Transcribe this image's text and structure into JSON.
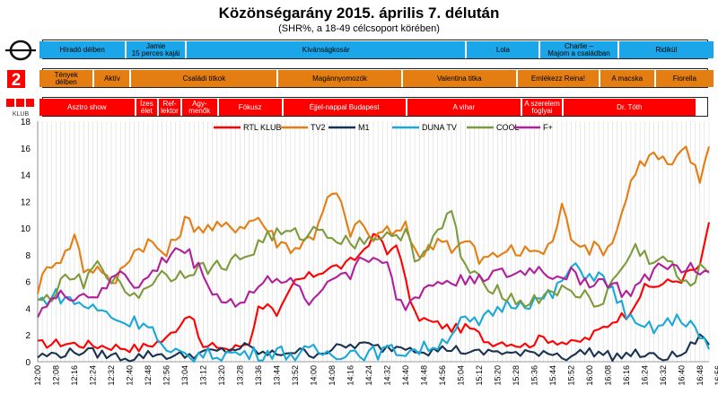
{
  "title": "Közönségarány 2015. április 7. délután",
  "subtitle": "(SHR%, a 18-49 célcsoport körében)",
  "channels": {
    "m1": {
      "logo": "m1-logo",
      "color": "#1aa6e8",
      "programs": [
        {
          "label": "Híradó délben",
          "start": 0,
          "end": 18
        },
        {
          "label": "Jamie\n15 perces kajái",
          "start": 19,
          "end": 31
        },
        {
          "label": "Kívánságkosár",
          "start": 32,
          "end": 92
        },
        {
          "label": "Lola",
          "start": 93,
          "end": 108
        },
        {
          "label": "Charlie –\nMajom a családban",
          "start": 109,
          "end": 125
        },
        {
          "label": "Ridikül",
          "start": 126,
          "end": 146
        }
      ]
    },
    "tv2": {
      "logo": "tv2-logo",
      "color": "#e47d12",
      "programs": [
        {
          "label": "Tények\ndélben",
          "start": 0,
          "end": 11
        },
        {
          "label": "Aktív",
          "start": 12,
          "end": 19
        },
        {
          "label": "Családi titkok",
          "start": 20,
          "end": 51
        },
        {
          "label": "Magánnyomozók",
          "start": 52,
          "end": 78
        },
        {
          "label": "Valentina titka",
          "start": 79,
          "end": 103
        },
        {
          "label": "Emlékezz Reina!",
          "start": 104,
          "end": 121
        },
        {
          "label": "A macska",
          "start": 122,
          "end": 133
        },
        {
          "label": "Fiorella",
          "start": 134,
          "end": 146
        }
      ]
    },
    "rtl": {
      "logo": "rtl-klub-logo",
      "logo_text": "KLUB",
      "color": "#ff0000",
      "programs": [
        {
          "label": "Asztro show",
          "start": 0,
          "end": 20
        },
        {
          "label": "Ízes\nélet",
          "start": 21,
          "end": 25
        },
        {
          "label": "Ref-\nlektor",
          "start": 26,
          "end": 30
        },
        {
          "label": "Agy-\nmenők",
          "start": 31,
          "end": 38
        },
        {
          "label": "Fókusz",
          "start": 39,
          "end": 52
        },
        {
          "label": "Éjjel-nappal Budapest",
          "start": 53,
          "end": 79
        },
        {
          "label": "A vihar",
          "start": 80,
          "end": 104
        },
        {
          "label": "A szerelem\nfoglyai",
          "start": 105,
          "end": 113
        },
        {
          "label": "Dr. Tóth",
          "start": 114,
          "end": 142
        }
      ]
    }
  },
  "chart_data": {
    "type": "line",
    "ylim": [
      0,
      18
    ],
    "yticks": [
      "0",
      "2",
      "4",
      "6",
      "8",
      "10",
      "12",
      "14",
      "16",
      "18"
    ],
    "x_labels": [
      "12:00",
      "12:08",
      "12:16",
      "12:24",
      "12:32",
      "12:40",
      "12:48",
      "12:56",
      "13:04",
      "13:12",
      "13:20",
      "13:28",
      "13:36",
      "13:44",
      "13:52",
      "14:00",
      "14:08",
      "14:16",
      "14:24",
      "14:32",
      "14:40",
      "14:48",
      "14:56",
      "15:04",
      "15:12",
      "15:20",
      "15:28",
      "15:36",
      "15:44",
      "15:52",
      "16:00",
      "16:08",
      "16:16",
      "16:24",
      "16:32",
      "16:40",
      "16:48",
      "16:56",
      "17:04",
      "17:12",
      "17:20",
      "17:28",
      "17:36",
      "17:44",
      "17:52"
    ],
    "legend_position": "top",
    "grid": "vertical",
    "series": [
      {
        "name": "RTL KLUB",
        "color": "#ff0000",
        "anchors": [
          [
            0,
            1.3
          ],
          [
            5,
            1.4
          ],
          [
            10,
            1.3
          ],
          [
            18,
            1.1
          ],
          [
            22,
            1.0
          ],
          [
            28,
            1.7
          ],
          [
            33,
            3.7
          ],
          [
            36,
            1.0
          ],
          [
            39,
            1.2
          ],
          [
            42,
            0.9
          ],
          [
            46,
            1.5
          ],
          [
            48,
            4.0
          ],
          [
            50,
            4.5
          ],
          [
            52,
            3.2
          ],
          [
            56,
            6.0
          ],
          [
            60,
            6.5
          ],
          [
            63,
            7.0
          ],
          [
            67,
            7.2
          ],
          [
            70,
            8.0
          ],
          [
            72,
            9.0
          ],
          [
            74,
            9.5
          ],
          [
            76,
            8.0
          ],
          [
            78,
            9.0
          ],
          [
            80,
            6.0
          ],
          [
            82,
            3.5
          ],
          [
            85,
            3.0
          ],
          [
            90,
            2.5
          ],
          [
            94,
            2.5
          ],
          [
            98,
            1.5
          ],
          [
            102,
            1.5
          ],
          [
            106,
            1.2
          ],
          [
            110,
            1.8
          ],
          [
            114,
            1.5
          ],
          [
            116,
            1.3
          ],
          [
            120,
            1.8
          ],
          [
            124,
            2.8
          ],
          [
            126,
            3.3
          ],
          [
            128,
            3.5
          ],
          [
            132,
            5.5
          ],
          [
            138,
            6.0
          ],
          [
            140,
            6.2
          ],
          [
            142,
            6.8
          ],
          [
            144,
            7.0
          ],
          [
            146,
            10.5
          ]
        ]
      },
      {
        "name": "TV2",
        "color": "#e47d12",
        "anchors": [
          [
            0,
            5.5
          ],
          [
            3,
            7.5
          ],
          [
            6,
            8.0
          ],
          [
            8,
            9.5
          ],
          [
            10,
            7.0
          ],
          [
            14,
            7.0
          ],
          [
            16,
            5.5
          ],
          [
            20,
            8.0
          ],
          [
            24,
            9.0
          ],
          [
            28,
            8.0
          ],
          [
            32,
            10.5
          ],
          [
            36,
            10.0
          ],
          [
            40,
            10.0
          ],
          [
            44,
            10.2
          ],
          [
            48,
            10.8
          ],
          [
            52,
            9.0
          ],
          [
            56,
            8.5
          ],
          [
            60,
            9.5
          ],
          [
            62,
            11.5
          ],
          [
            64,
            12.5
          ],
          [
            66,
            12.0
          ],
          [
            68,
            9.0
          ],
          [
            70,
            11.0
          ],
          [
            72,
            9.0
          ],
          [
            76,
            10.0
          ],
          [
            78,
            9.5
          ],
          [
            80,
            10.0
          ],
          [
            82,
            8.5
          ],
          [
            84,
            8.0
          ],
          [
            88,
            9.5
          ],
          [
            90,
            8.5
          ],
          [
            94,
            9.0
          ],
          [
            96,
            7.5
          ],
          [
            100,
            8.0
          ],
          [
            102,
            8.5
          ],
          [
            104,
            8.0
          ],
          [
            108,
            8.5
          ],
          [
            110,
            8.0
          ],
          [
            112,
            9.2
          ],
          [
            114,
            11.5
          ],
          [
            116,
            9.5
          ],
          [
            120,
            8.5
          ],
          [
            124,
            8.5
          ],
          [
            126,
            10.0
          ],
          [
            130,
            14.5
          ],
          [
            134,
            15.5
          ],
          [
            138,
            14.5
          ],
          [
            141,
            16.0
          ],
          [
            144,
            13.5
          ],
          [
            146,
            16.5
          ]
        ]
      },
      {
        "name": "M1",
        "color": "#1a3350",
        "anchors": [
          [
            0,
            0.4
          ],
          [
            5,
            0.6
          ],
          [
            10,
            0.8
          ],
          [
            15,
            0.5
          ],
          [
            20,
            0.3
          ],
          [
            25,
            0.6
          ],
          [
            30,
            0.4
          ],
          [
            35,
            0.6
          ],
          [
            40,
            0.8
          ],
          [
            45,
            1.1
          ],
          [
            50,
            0.5
          ],
          [
            55,
            0.8
          ],
          [
            60,
            0.6
          ],
          [
            65,
            1.0
          ],
          [
            70,
            1.3
          ],
          [
            75,
            1.0
          ],
          [
            80,
            1.2
          ],
          [
            85,
            0.8
          ],
          [
            90,
            1.0
          ],
          [
            95,
            0.6
          ],
          [
            100,
            0.8
          ],
          [
            105,
            0.5
          ],
          [
            110,
            0.8
          ],
          [
            115,
            0.4
          ],
          [
            120,
            0.8
          ],
          [
            125,
            0.4
          ],
          [
            130,
            0.6
          ],
          [
            135,
            0.3
          ],
          [
            140,
            0.5
          ],
          [
            143,
            1.5
          ],
          [
            145,
            2.0
          ],
          [
            146,
            1.0
          ]
        ]
      },
      {
        "name": "DUNA TV",
        "color": "#19a8d8",
        "anchors": [
          [
            0,
            4.5
          ],
          [
            4,
            5.0
          ],
          [
            8,
            4.5
          ],
          [
            12,
            4.0
          ],
          [
            16,
            3.5
          ],
          [
            18,
            3.0
          ],
          [
            20,
            3.0
          ],
          [
            24,
            3.0
          ],
          [
            28,
            0.5
          ],
          [
            32,
            0.5
          ],
          [
            36,
            0.5
          ],
          [
            40,
            0.6
          ],
          [
            44,
            0.6
          ],
          [
            48,
            0.6
          ],
          [
            52,
            0.8
          ],
          [
            56,
            0.5
          ],
          [
            60,
            0.8
          ],
          [
            64,
            0.6
          ],
          [
            68,
            0.8
          ],
          [
            72,
            0.6
          ],
          [
            76,
            0.8
          ],
          [
            80,
            0.8
          ],
          [
            84,
            1.0
          ],
          [
            88,
            1.5
          ],
          [
            92,
            3.0
          ],
          [
            96,
            2.8
          ],
          [
            100,
            4.0
          ],
          [
            104,
            4.5
          ],
          [
            108,
            4.5
          ],
          [
            112,
            5.0
          ],
          [
            116,
            7.0
          ],
          [
            120,
            6.5
          ],
          [
            122,
            6.5
          ],
          [
            126,
            4.8
          ],
          [
            130,
            2.5
          ],
          [
            134,
            2.5
          ],
          [
            138,
            3.0
          ],
          [
            140,
            3.2
          ],
          [
            142,
            3.0
          ],
          [
            144,
            1.8
          ],
          [
            146,
            0.8
          ]
        ]
      },
      {
        "name": "COOL",
        "color": "#7d9b3c",
        "anchors": [
          [
            0,
            4.3
          ],
          [
            3,
            5.0
          ],
          [
            6,
            6.0
          ],
          [
            8,
            6.5
          ],
          [
            10,
            5.5
          ],
          [
            12,
            7.0
          ],
          [
            14,
            7.2
          ],
          [
            18,
            5.5
          ],
          [
            22,
            5.0
          ],
          [
            26,
            6.5
          ],
          [
            30,
            6.5
          ],
          [
            34,
            7.0
          ],
          [
            38,
            7.0
          ],
          [
            42,
            7.5
          ],
          [
            46,
            8.0
          ],
          [
            50,
            9.5
          ],
          [
            54,
            9.5
          ],
          [
            58,
            9.5
          ],
          [
            62,
            10.0
          ],
          [
            66,
            9.0
          ],
          [
            70,
            9.0
          ],
          [
            74,
            9.5
          ],
          [
            78,
            9.0
          ],
          [
            80,
            10.2
          ],
          [
            82,
            8.0
          ],
          [
            84,
            8.0
          ],
          [
            88,
            10.0
          ],
          [
            90,
            11.5
          ],
          [
            92,
            8.0
          ],
          [
            94,
            6.5
          ],
          [
            96,
            6.0
          ],
          [
            100,
            5.5
          ],
          [
            104,
            4.5
          ],
          [
            108,
            4.5
          ],
          [
            112,
            5.5
          ],
          [
            116,
            5.0
          ],
          [
            120,
            5.0
          ],
          [
            122,
            4.0
          ],
          [
            126,
            6.5
          ],
          [
            130,
            8.5
          ],
          [
            134,
            7.5
          ],
          [
            138,
            7.5
          ],
          [
            140,
            5.5
          ],
          [
            142,
            6.0
          ],
          [
            144,
            6.8
          ],
          [
            146,
            6.8
          ]
        ]
      },
      {
        "name": "F+",
        "color": "#b0209a",
        "anchors": [
          [
            0,
            3.8
          ],
          [
            3,
            4.5
          ],
          [
            6,
            5.0
          ],
          [
            10,
            5.0
          ],
          [
            14,
            5.0
          ],
          [
            18,
            7.0
          ],
          [
            22,
            5.5
          ],
          [
            26,
            7.0
          ],
          [
            30,
            8.5
          ],
          [
            33,
            8.0
          ],
          [
            36,
            6.5
          ],
          [
            40,
            4.5
          ],
          [
            44,
            4.5
          ],
          [
            48,
            5.5
          ],
          [
            52,
            6.5
          ],
          [
            56,
            5.5
          ],
          [
            60,
            4.5
          ],
          [
            64,
            6.5
          ],
          [
            68,
            6.5
          ],
          [
            70,
            8.0
          ],
          [
            72,
            7.5
          ],
          [
            76,
            8.0
          ],
          [
            78,
            4.5
          ],
          [
            80,
            4.0
          ],
          [
            84,
            5.5
          ],
          [
            88,
            6.0
          ],
          [
            92,
            6.0
          ],
          [
            96,
            6.5
          ],
          [
            100,
            6.5
          ],
          [
            104,
            6.5
          ],
          [
            108,
            7.0
          ],
          [
            112,
            6.5
          ],
          [
            116,
            6.5
          ],
          [
            120,
            6.0
          ],
          [
            124,
            6.0
          ],
          [
            128,
            5.0
          ],
          [
            132,
            6.0
          ],
          [
            136,
            7.5
          ],
          [
            140,
            6.5
          ],
          [
            142,
            7.0
          ],
          [
            144,
            6.5
          ],
          [
            146,
            7.2
          ]
        ]
      }
    ]
  }
}
